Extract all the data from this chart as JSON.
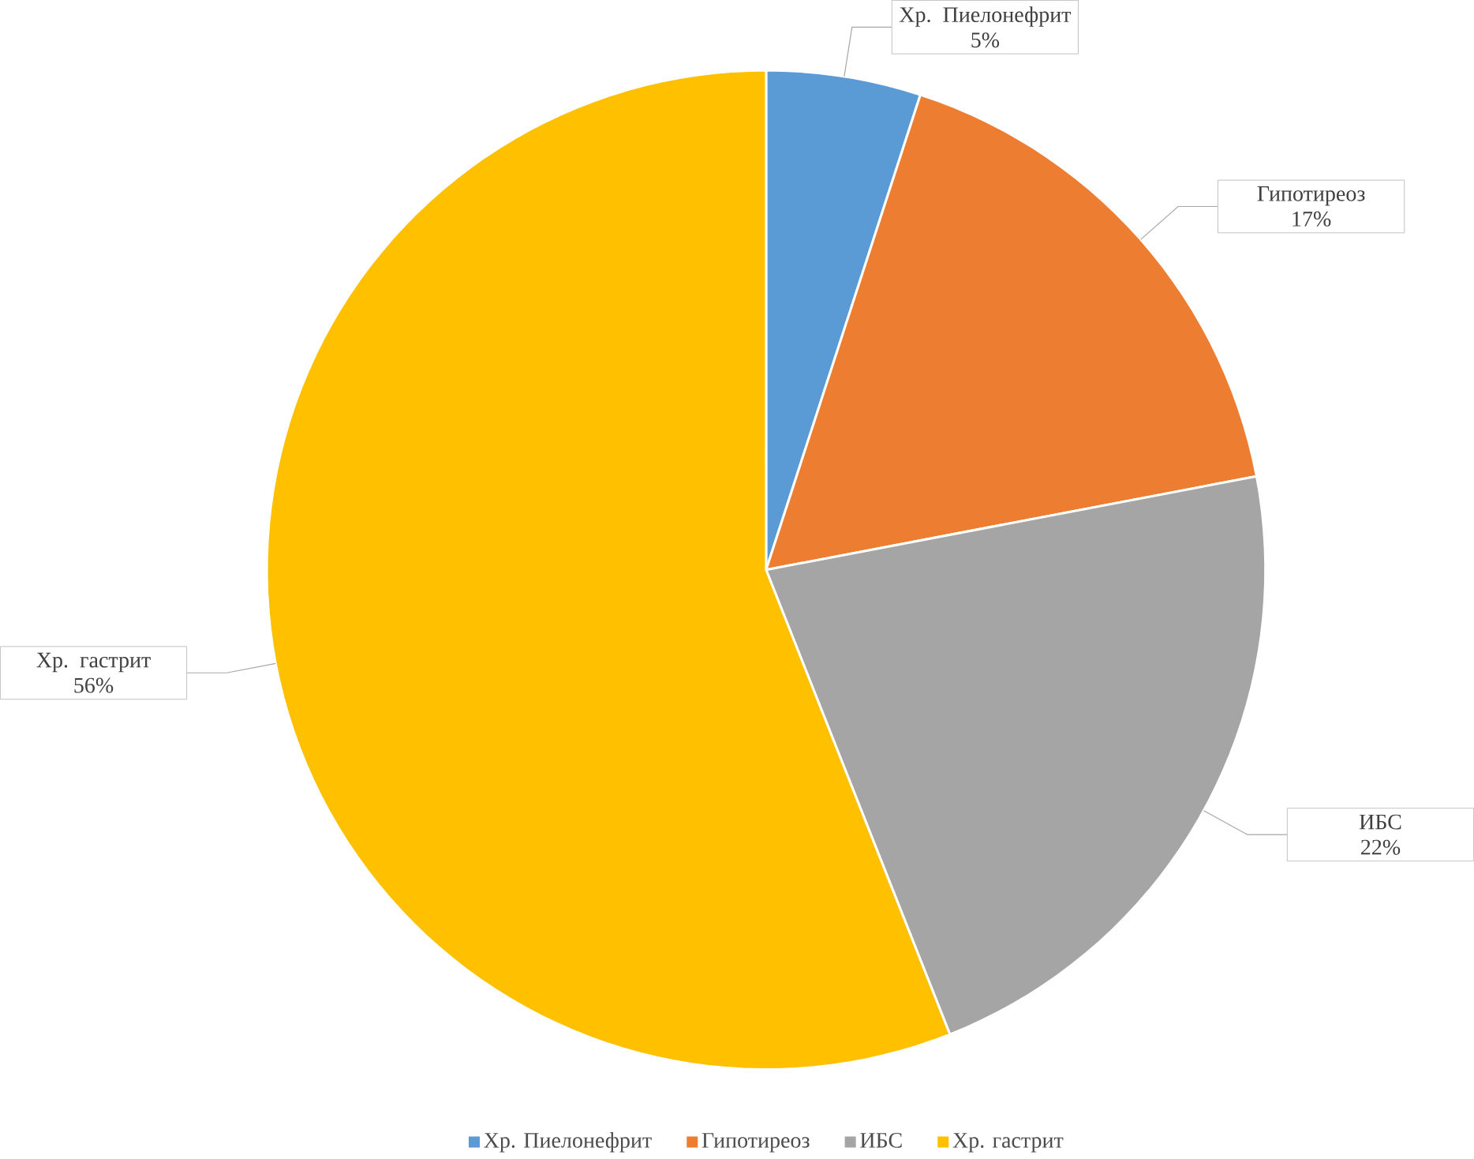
{
  "chart_data": {
    "type": "pie",
    "categories": [
      "Хр. Пиелонефрит",
      "Гипотиреоз",
      "ИБС",
      "Хр. гастрит"
    ],
    "values": [
      5,
      17,
      22,
      56
    ],
    "colors": [
      "#5b9bd5",
      "#ed7d31",
      "#a5a5a5",
      "#ffc000"
    ],
    "value_labels": [
      "5%",
      "17%",
      "22%",
      "56%"
    ],
    "legend": "bottom"
  }
}
